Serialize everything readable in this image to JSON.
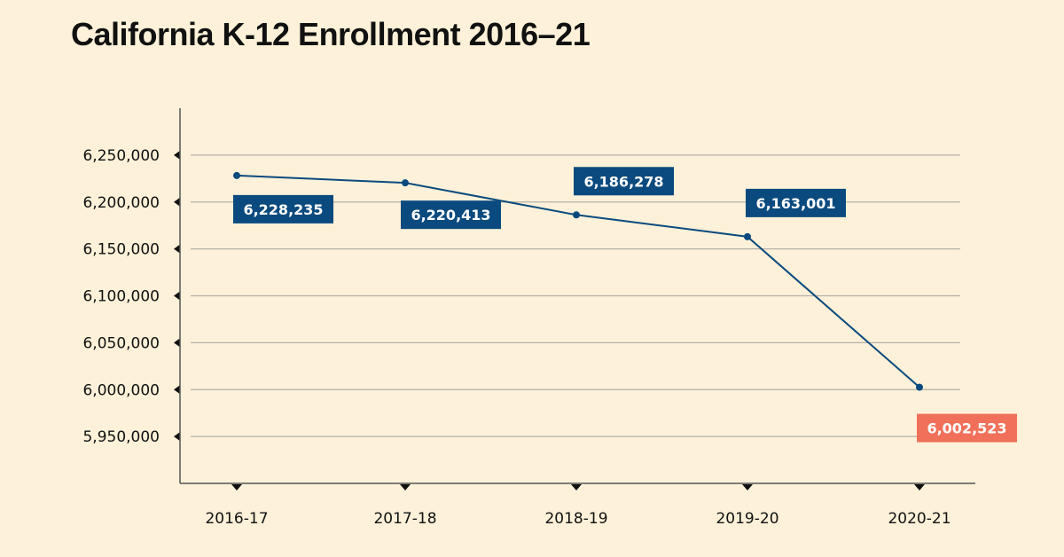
{
  "chart_data": {
    "type": "line",
    "title": "California K-12 Enrollment 2016–21",
    "xlabel": "",
    "ylabel": "",
    "categories": [
      "2016-17",
      "2017-18",
      "2018-19",
      "2019-20",
      "2020-21"
    ],
    "values": [
      6228235,
      6220413,
      6186278,
      6163001,
      6002523
    ],
    "data_labels": [
      "6,228,235",
      "6,220,413",
      "6,186,278",
      "6,163,001",
      "6,002,523"
    ],
    "yticks": [
      5950000,
      6000000,
      6050000,
      6100000,
      6150000,
      6200000,
      6250000
    ],
    "ytick_labels": [
      "5,950,000",
      "6,000,000",
      "6,050,000",
      "6,100,000",
      "6,150,000",
      "6,200,000",
      "6,250,000"
    ],
    "ylim": [
      5900000,
      6300000
    ],
    "grid": "horizontal",
    "colors": {
      "line": "#0b4a7e",
      "label": "#0b4a7e",
      "highlight": "#f07059",
      "background": "#fdf1d9",
      "grid": "#b5b1a8",
      "axis": "#555555"
    }
  }
}
